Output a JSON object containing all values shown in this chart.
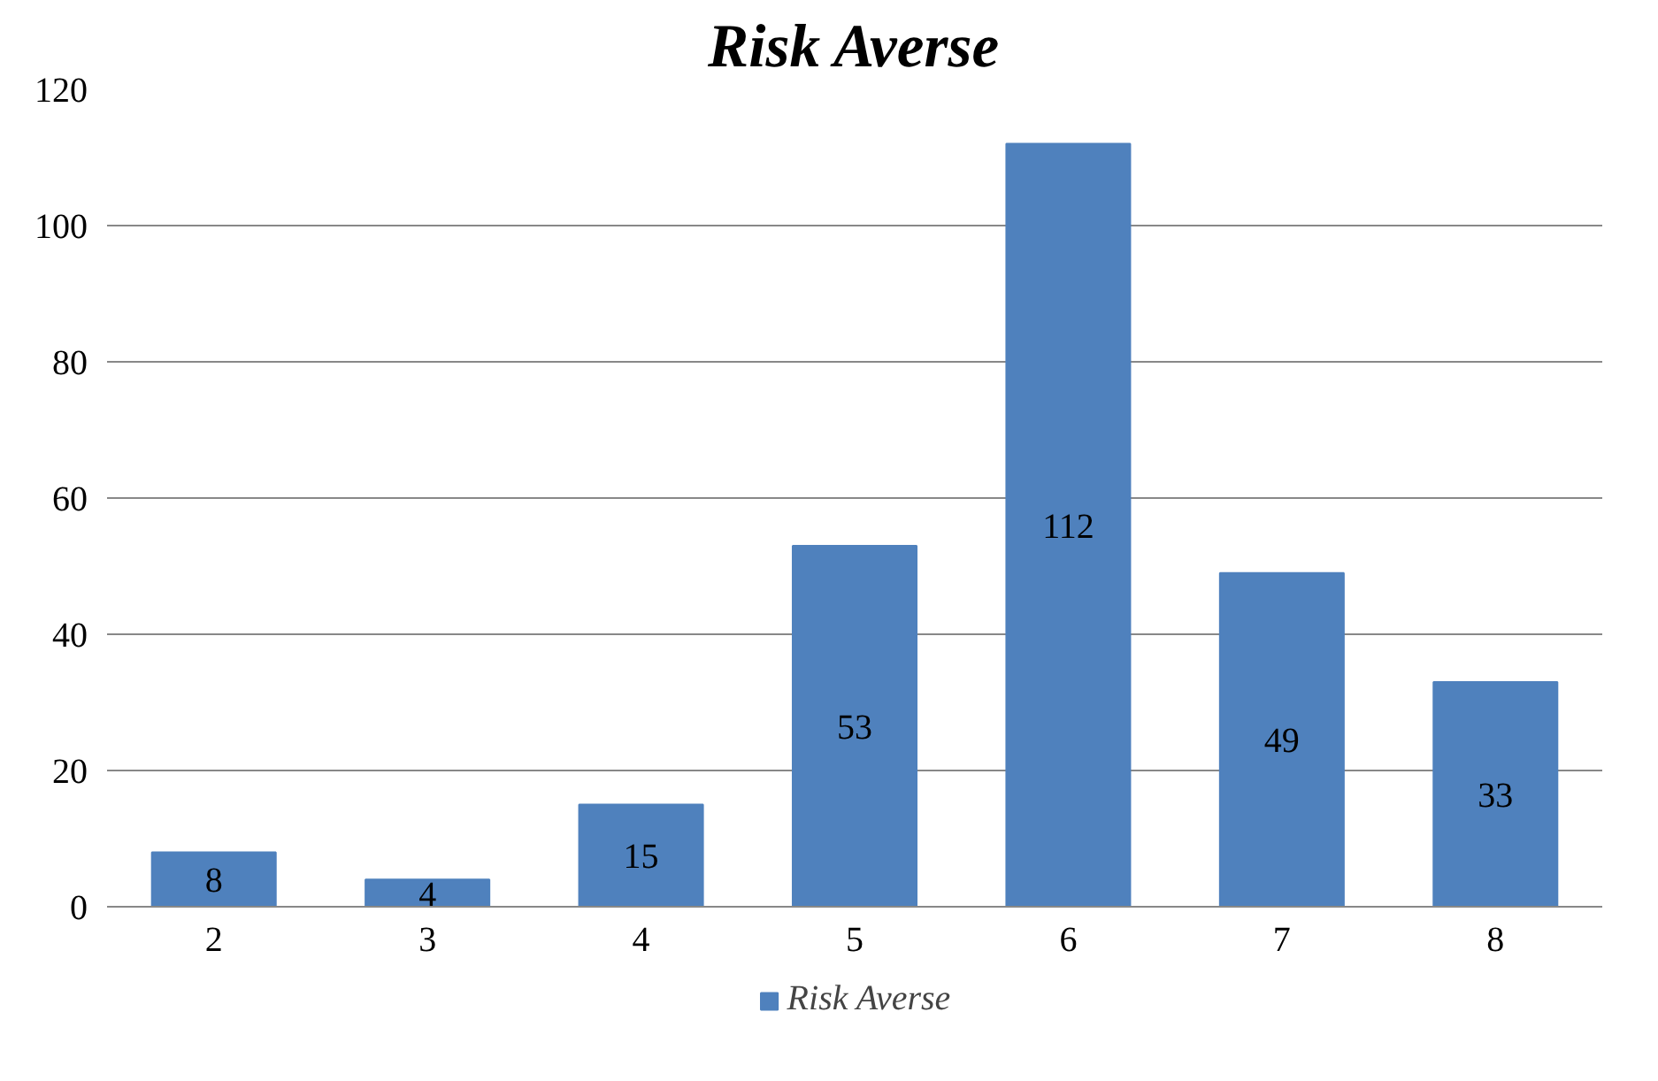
{
  "chart_data": {
    "type": "bar",
    "title": "Risk Averse",
    "categories": [
      "2",
      "3",
      "4",
      "5",
      "6",
      "7",
      "8"
    ],
    "series": [
      {
        "name": "Risk Averse",
        "color": "#4f81bd",
        "values": [
          8,
          4,
          15,
          53,
          112,
          49,
          33
        ]
      }
    ],
    "ylim": [
      0,
      120
    ],
    "yticks": [
      0,
      20,
      40,
      60,
      80,
      100,
      120
    ],
    "grid": "y",
    "legend": "bottom",
    "data_labels": true
  }
}
